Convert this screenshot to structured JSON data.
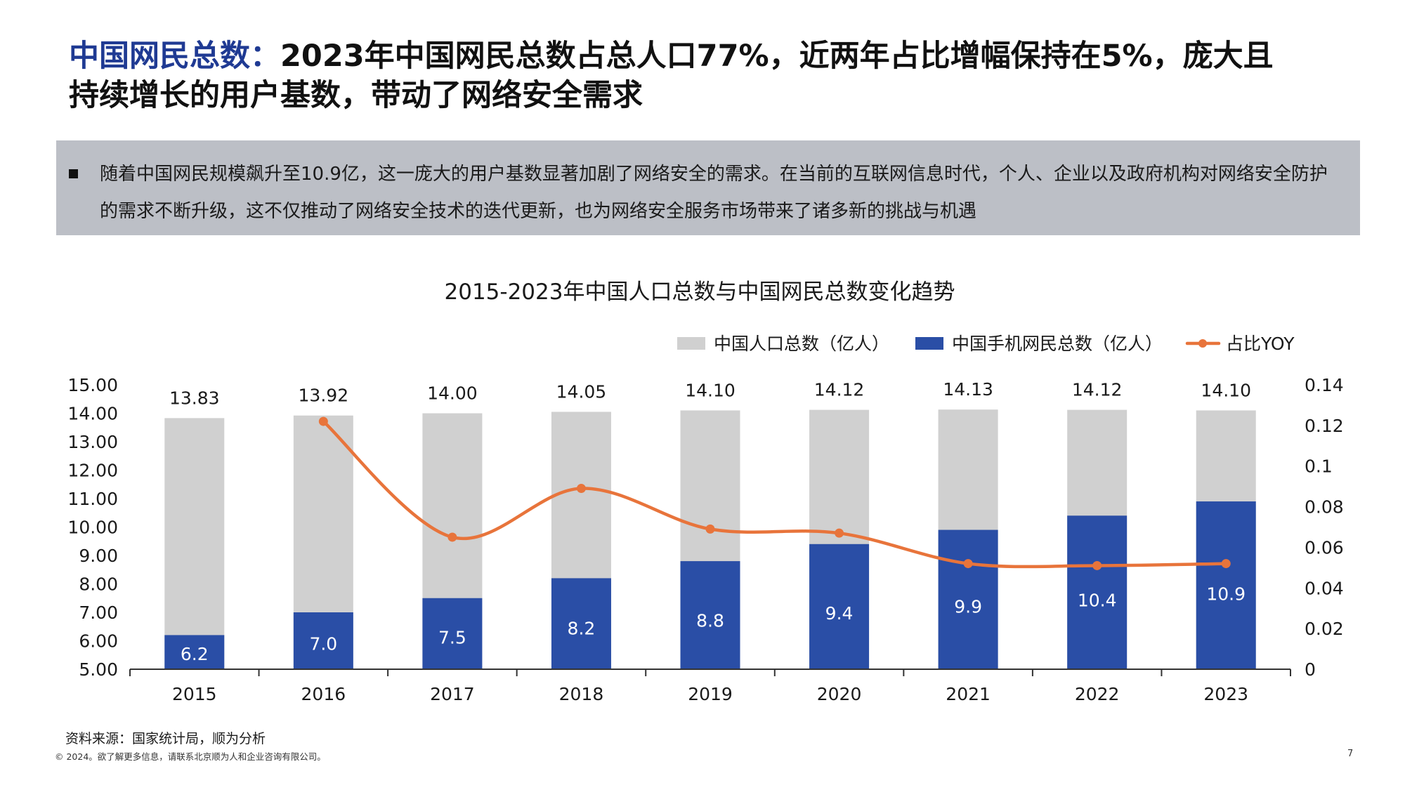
{
  "headline": {
    "accent": "中国网民总数：",
    "line1_rest": "2023年中国网民总数占总人口77%，近两年占比增幅保持在5%，庞大且",
    "line2": "持续增长的用户基数，带动了网络安全需求"
  },
  "summary": {
    "bullet_icon": "square-bullet-icon",
    "text": "随着中国网民规模飙升至10.9亿，这一庞大的用户基数显著加剧了网络安全的需求。在当前的互联网信息时代，个人、企业以及政府机构对网络安全防护的需求不断升级，这不仅推动了网络安全技术的迭代更新，也为网络安全服务市场带来了诸多新的挑战与机遇"
  },
  "chart_data": {
    "type": "bar",
    "subtype": "overlapping bar + line (dual axis)",
    "title": "2015-2023年中国人口总数与中国网民总数变化趋势",
    "categories": [
      "2015",
      "2016",
      "2017",
      "2018",
      "2019",
      "2020",
      "2021",
      "2022",
      "2023"
    ],
    "series": [
      {
        "name": "中国人口总数（亿人）",
        "type": "bar",
        "axis": "left",
        "color": "#d0d0d0",
        "values": [
          13.83,
          13.92,
          14.0,
          14.05,
          14.1,
          14.12,
          14.13,
          14.12,
          14.1
        ],
        "labels": [
          "13.83",
          "13.92",
          "14.00",
          "14.05",
          "14.10",
          "14.12",
          "14.13",
          "14.12",
          "14.10"
        ]
      },
      {
        "name": "中国手机网民总数（亿人）",
        "type": "bar",
        "axis": "left",
        "color": "#2a4ea6",
        "values": [
          6.2,
          7.0,
          7.5,
          8.2,
          8.8,
          9.4,
          9.9,
          10.4,
          10.9
        ],
        "labels": [
          "6.2",
          "7.0",
          "7.5",
          "8.2",
          "8.8",
          "9.4",
          "9.9",
          "10.4",
          "10.9"
        ]
      },
      {
        "name": "占比YOY",
        "type": "line",
        "axis": "right",
        "color": "#e8743b",
        "values": [
          null,
          0.122,
          0.065,
          0.089,
          0.069,
          0.067,
          0.052,
          0.051,
          0.052
        ]
      }
    ],
    "y_left": {
      "range": [
        5,
        15
      ],
      "ticks": [
        "5.00",
        "6.00",
        "7.00",
        "8.00",
        "9.00",
        "10.00",
        "11.00",
        "12.00",
        "13.00",
        "14.00",
        "15.00"
      ]
    },
    "y_right": {
      "range": [
        0,
        0.14
      ],
      "ticks": [
        "0",
        "0.02",
        "0.04",
        "0.06",
        "0.08",
        "0.1",
        "0.12",
        "0.14"
      ]
    },
    "xlabel": "",
    "ylabel": "",
    "grid": false,
    "legend_position": "top-right"
  },
  "footer": {
    "source": "资料来源：国家统计局，顺为分析",
    "copyright": "© 2024。欲了解更多信息，请联系北京顺为人和企业咨询有限公司。",
    "page_number": "7"
  }
}
